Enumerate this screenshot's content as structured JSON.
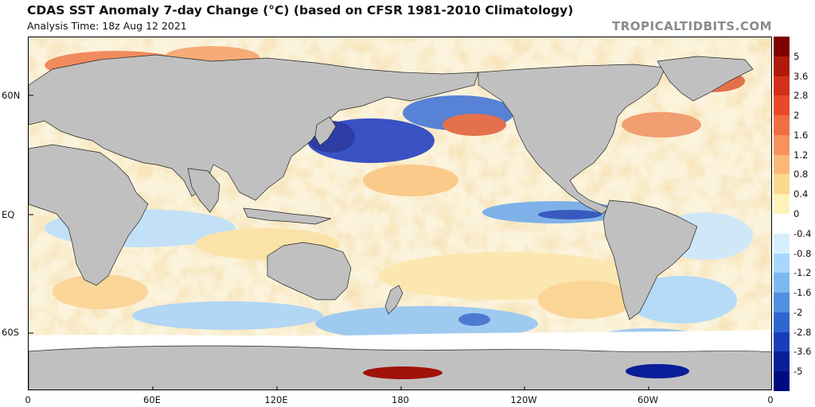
{
  "header": {
    "title": "CDAS SST Anomaly 7-day Change (°C) (based on CFSR 1981-2010 Climatology)",
    "analysis_time": "Analysis Time: 18z Aug 12 2021",
    "credit": "TROPICALTIDBITS.COM"
  },
  "map": {
    "lat_labels": [
      "60N",
      "EQ",
      "60S"
    ],
    "lon_labels": [
      "0",
      "60E",
      "120E",
      "180",
      "120W",
      "60W",
      "0"
    ],
    "land_color": "#c0c0c0",
    "ice_color": "#ffffff"
  },
  "colorbar": {
    "labels": [
      "5",
      "3.6",
      "2.8",
      "2",
      "1.6",
      "1.2",
      "0.8",
      "0.4",
      "0",
      "-0.4",
      "-0.8",
      "-1.2",
      "-1.6",
      "-2",
      "-2.8",
      "-3.6",
      "-5"
    ],
    "colors": [
      "#7f0000",
      "#b01a0a",
      "#d2301a",
      "#e64a2a",
      "#f06e44",
      "#f7925e",
      "#fbb878",
      "#fcd890",
      "#fff2b8",
      "#ffffff",
      "#d6efff",
      "#a9d7fb",
      "#7bb9f0",
      "#5090e0",
      "#2f66d0",
      "#1740b8",
      "#0a1e9a",
      "#000a80"
    ]
  }
}
